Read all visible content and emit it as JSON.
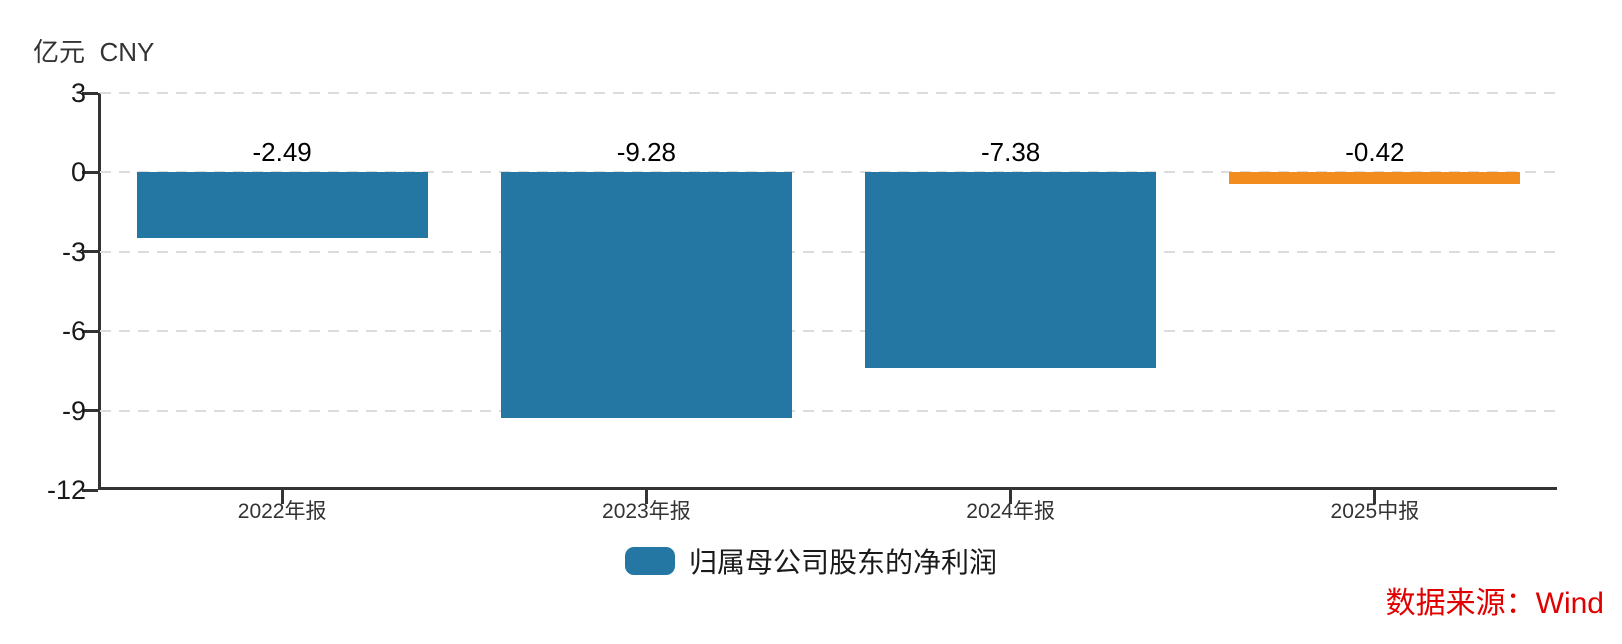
{
  "chart": {
    "unit_label": "亿元  CNY",
    "legend_label": "归属母公司股东的净利润",
    "source_label": "数据来源：Wind",
    "colors": {
      "bar_default": "#2577A3",
      "bar_highlight": "#F28C1E",
      "source_text": "#E00000",
      "axis": "#333333",
      "gridline": "#DCDCDC"
    }
  },
  "chart_data": {
    "type": "bar",
    "title": "",
    "unit": "亿元 CNY",
    "categories": [
      "2022年报",
      "2023年报",
      "2024年报",
      "2025中报"
    ],
    "values": [
      -2.49,
      -9.28,
      -7.38,
      -0.42
    ],
    "value_labels": [
      "-2.49",
      "-9.28",
      "-7.38",
      "-0.42"
    ],
    "bar_colors": [
      "#2577A3",
      "#2577A3",
      "#2577A3",
      "#F28C1E"
    ],
    "series_name": "归属母公司股东的净利润",
    "ylim": [
      -12,
      3
    ],
    "yticks": [
      3,
      0,
      -3,
      -6,
      -9,
      -12
    ],
    "grid": "horizontal-dashed",
    "legend_position": "bottom-center",
    "annotation": "数据来源：Wind"
  }
}
